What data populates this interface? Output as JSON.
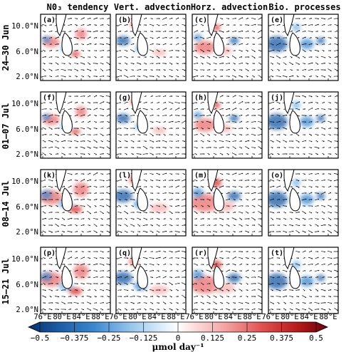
{
  "column_titles": [
    "N0₃ tendency",
    "Vert. advection",
    "Horz. advection",
    "Bio. processes"
  ],
  "row_titles": [
    "24–30 Jun",
    "01–07 Jul",
    "08–14 Jul",
    "15–21 Jul"
  ],
  "panel_labels": [
    [
      "(a)",
      "(b)",
      "(c)",
      "(e)"
    ],
    [
      "(f)",
      "(g)",
      "(h)",
      "(j)"
    ],
    [
      "(k)",
      "(l)",
      "(m)",
      "(o)"
    ],
    [
      "(p)",
      "(q)",
      "(r)",
      "(t)"
    ]
  ],
  "y_ticks": [
    "10.0°N",
    "6.0°N",
    "2.0°N"
  ],
  "x_ticks": [
    "76°E",
    "80°E",
    "84°E",
    "88°E"
  ],
  "colorbar": {
    "ticks": [
      "−0.5",
      "−0.375",
      "−0.25",
      "−0.125",
      "0",
      "0.125",
      "0.25",
      "0.375",
      "0.5"
    ],
    "unit": "μmol day⁻¹",
    "colors": [
      "#08306b",
      "#1c5ba6",
      "#3c88d0",
      "#78b4e6",
      "#b8d8f4",
      "#eaf4fc",
      "#ffffff",
      "#fde6e6",
      "#f5b0b0",
      "#ea6f6f",
      "#d52c2c",
      "#a50f15",
      "#67000d"
    ]
  }
}
